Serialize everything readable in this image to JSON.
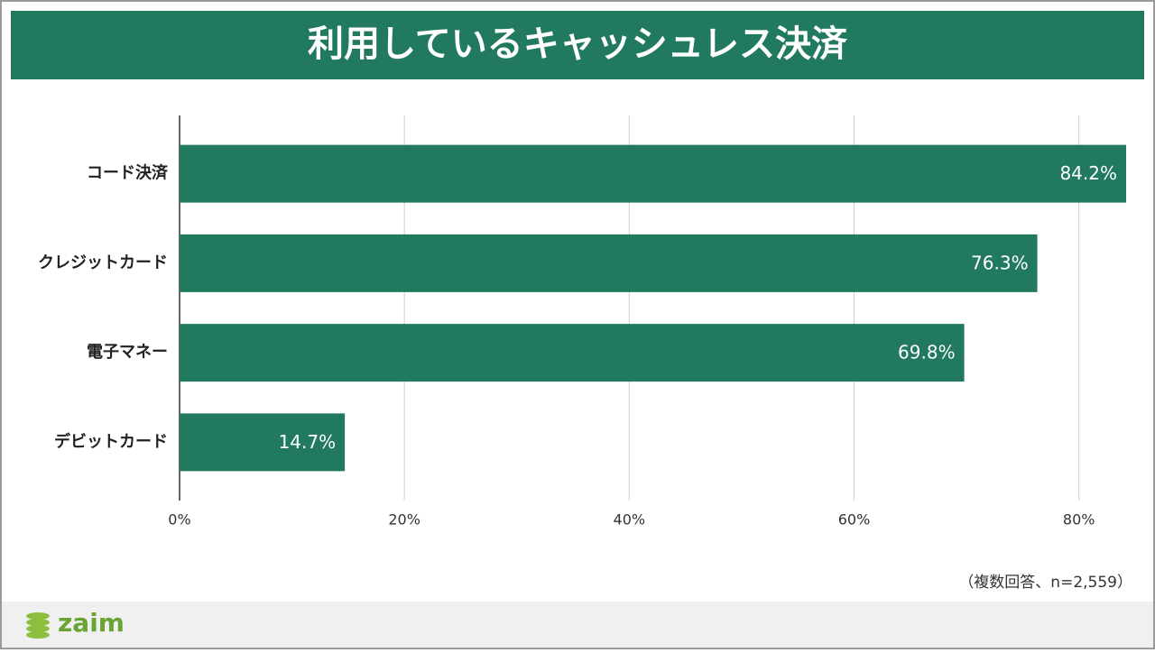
{
  "chart_data": {
    "type": "bar",
    "orientation": "horizontal",
    "title": "利用しているキャッシュレス決済",
    "categories": [
      "コード決済",
      "クレジットカード",
      "電子マネー",
      "デビットカード"
    ],
    "values": [
      84.2,
      76.3,
      69.8,
      14.7
    ],
    "value_labels": [
      "84.2%",
      "76.3%",
      "69.8%",
      "14.7%"
    ],
    "color": "#217a5f",
    "xlim": [
      0,
      84.2
    ],
    "xticks": [
      {
        "value": 0,
        "label": "0%"
      },
      {
        "value": 20,
        "label": "20%"
      },
      {
        "value": 40,
        "label": "40%"
      },
      {
        "value": 60,
        "label": "60%"
      },
      {
        "value": 80,
        "label": "80%"
      }
    ],
    "grid": true,
    "note": "（複数回答、n=2,559）"
  },
  "footer": {
    "brand": "zaim"
  }
}
